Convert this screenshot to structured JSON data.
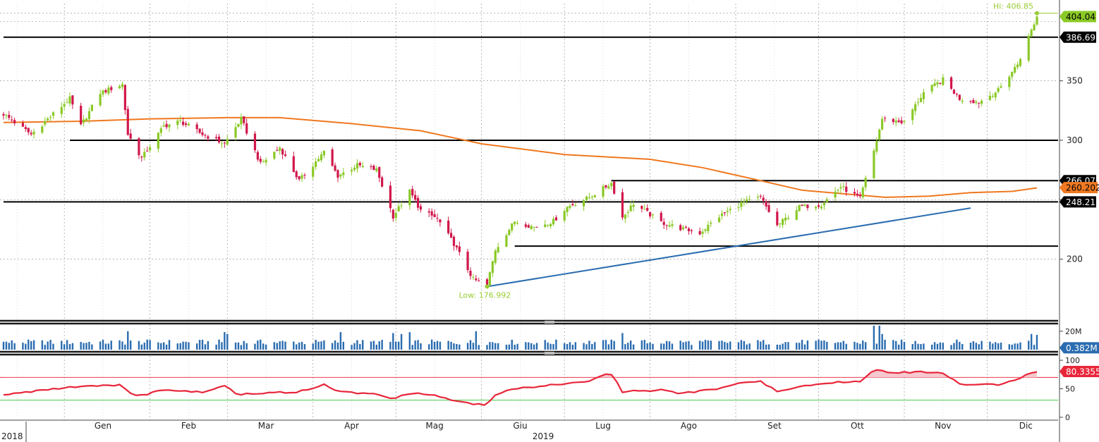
{
  "colors": {
    "up": "#8ac926",
    "down": "#d1174b",
    "ma": "#f07820",
    "trend": "#2a6cb0",
    "volume": "#2a6cb0",
    "rsi": "#e8263a",
    "rsi_fill": "#f5c9cf",
    "rsi_upper": "#e8263a",
    "rsi_lower": "#46c846",
    "hilo": "#99cc33"
  },
  "chart_data": {
    "type": "candlestick",
    "price_axis": {
      "ylim": [
        150,
        415
      ],
      "ticks": [
        "200",
        "250",
        "300",
        "350"
      ]
    },
    "x_labels": [
      {
        "label": "Gen",
        "date": "2019-01"
      },
      {
        "label": "Feb",
        "date": "2019-02"
      },
      {
        "label": "Mar",
        "date": "2019-03"
      },
      {
        "label": "Apr",
        "date": "2019-04"
      },
      {
        "label": "Mag",
        "date": "2019-05"
      },
      {
        "label": "Giu",
        "date": "2019-06"
      },
      {
        "label": "Lug",
        "date": "2019-07"
      },
      {
        "label": "Ago",
        "date": "2019-08"
      },
      {
        "label": "Set",
        "date": "2019-09"
      },
      {
        "label": "Ott",
        "date": "2019-10"
      },
      {
        "label": "Nov",
        "date": "2019-11"
      },
      {
        "label": "Dic",
        "date": "2019-12"
      }
    ],
    "year_labels": [
      "2018",
      "2019"
    ],
    "close_path": [
      [
        "2018-12-10",
        322
      ],
      [
        "2018-12-20",
        305
      ],
      [
        "2019-01-03",
        335
      ],
      [
        "2019-01-07",
        312
      ],
      [
        "2019-01-14",
        340
      ],
      [
        "2019-01-22",
        347
      ],
      [
        "2019-01-24",
        305
      ],
      [
        "2019-01-29",
        285
      ],
      [
        "2019-02-06",
        312
      ],
      [
        "2019-02-12",
        316
      ],
      [
        "2019-02-20",
        305
      ],
      [
        "2019-02-28",
        297
      ],
      [
        "2019-03-06",
        318
      ],
      [
        "2019-03-13",
        280
      ],
      [
        "2019-03-20",
        294
      ],
      [
        "2019-03-27",
        266
      ],
      [
        "2019-04-05",
        290
      ],
      [
        "2019-04-10",
        270
      ],
      [
        "2019-04-17",
        279
      ],
      [
        "2019-04-24",
        275
      ],
      [
        "2019-04-30",
        236
      ],
      [
        "2019-05-06",
        257
      ],
      [
        "2019-05-10",
        241
      ],
      [
        "2019-05-16",
        234
      ],
      [
        "2019-05-22",
        213
      ],
      [
        "2019-05-29",
        183
      ],
      [
        "2019-06-03",
        178
      ],
      [
        "2019-06-06",
        208
      ],
      [
        "2019-06-13",
        232
      ],
      [
        "2019-06-20",
        227
      ],
      [
        "2019-06-27",
        232
      ],
      [
        "2019-07-02",
        244
      ],
      [
        "2019-07-10",
        252
      ],
      [
        "2019-07-18",
        264
      ],
      [
        "2019-07-22",
        235
      ],
      [
        "2019-07-26",
        247
      ],
      [
        "2019-08-05",
        231
      ],
      [
        "2019-08-12",
        226
      ],
      [
        "2019-08-19",
        222
      ],
      [
        "2019-08-26",
        236
      ],
      [
        "2019-09-03",
        247
      ],
      [
        "2019-09-10",
        252
      ],
      [
        "2019-09-16",
        228
      ],
      [
        "2019-09-24",
        244
      ],
      [
        "2019-10-02",
        246
      ],
      [
        "2019-10-09",
        261
      ],
      [
        "2019-10-16",
        251
      ],
      [
        "2019-10-21",
        291
      ],
      [
        "2019-10-24",
        318
      ],
      [
        "2019-11-01",
        315
      ],
      [
        "2019-11-08",
        340
      ],
      [
        "2019-11-15",
        351
      ],
      [
        "2019-11-21",
        335
      ],
      [
        "2019-11-28",
        332
      ],
      [
        "2019-12-05",
        342
      ],
      [
        "2019-12-12",
        364
      ],
      [
        "2019-12-19",
        404
      ]
    ],
    "moving_average_path": [
      [
        "2018-12-10",
        315
      ],
      [
        "2019-01-07",
        316
      ],
      [
        "2019-02-01",
        318
      ],
      [
        "2019-03-01",
        319
      ],
      [
        "2019-03-20",
        319
      ],
      [
        "2019-04-15",
        314
      ],
      [
        "2019-05-10",
        308
      ],
      [
        "2019-06-01",
        297
      ],
      [
        "2019-07-01",
        288
      ],
      [
        "2019-08-01",
        284
      ],
      [
        "2019-08-20",
        277
      ],
      [
        "2019-09-10",
        266
      ],
      [
        "2019-09-25",
        258
      ],
      [
        "2019-10-10",
        255
      ],
      [
        "2019-10-25",
        252
      ],
      [
        "2019-11-10",
        253
      ],
      [
        "2019-11-25",
        256
      ],
      [
        "2019-12-10",
        257
      ],
      [
        "2019-12-19",
        260
      ]
    ],
    "horizontal_levels": [
      {
        "value": 386.69,
        "from": "2018-12-10",
        "to": "2019-12-31"
      },
      {
        "value": 300,
        "from": "2019-01-03",
        "to": "2019-12-31"
      },
      {
        "value": 266.07,
        "from": "2019-07-18",
        "to": "2019-12-31"
      },
      {
        "value": 248.21,
        "from": "2018-12-10",
        "to": "2019-12-31"
      },
      {
        "value": 211,
        "from": "2019-06-13",
        "to": "2019-12-31"
      }
    ],
    "trendline": {
      "from": [
        "2019-06-03",
        177
      ],
      "to": [
        "2019-11-25",
        243
      ]
    },
    "hi": {
      "text": "Hi: 406.85",
      "date": "2019-12-19",
      "value": 406.85
    },
    "low": {
      "text": "Low: 176.992",
      "date": "2019-06-03",
      "value": 176.992
    },
    "price_badges": [
      {
        "text": "404.04",
        "value": 404.04,
        "style": "green"
      },
      {
        "text": "386.69",
        "value": 386.69,
        "style": "dark"
      },
      {
        "text": "266.07",
        "value": 266.07,
        "style": "dark"
      },
      {
        "text": "260.202",
        "value": 260.202,
        "style": "orange"
      },
      {
        "text": "248.21",
        "value": 248.21,
        "style": "dark"
      }
    ],
    "volume": {
      "ticks": [
        "20M"
      ],
      "ylim": [
        0,
        26
      ],
      "last": "0.382M",
      "spikes": [
        [
          "2019-01-24",
          20
        ],
        [
          "2019-02-28",
          19
        ],
        [
          "2019-03-01",
          17
        ],
        [
          "2019-04-11",
          19
        ],
        [
          "2019-04-30",
          18
        ],
        [
          "2019-05-03",
          17
        ],
        [
          "2019-05-06",
          19
        ],
        [
          "2019-05-30",
          20
        ],
        [
          "2019-07-22",
          18
        ],
        [
          "2019-10-21",
          26
        ],
        [
          "2019-10-23",
          26
        ],
        [
          "2019-10-24",
          17
        ],
        [
          "2019-12-17",
          17
        ],
        [
          "2019-12-19",
          16
        ]
      ]
    },
    "rsi": {
      "ticks": [
        "0",
        "50",
        "100"
      ],
      "ylim": [
        -5,
        105
      ],
      "upper": 70,
      "lower": 30,
      "last": "80.3355",
      "path": [
        [
          "2018-12-10",
          40
        ],
        [
          "2018-12-20",
          45
        ],
        [
          "2019-01-07",
          55
        ],
        [
          "2019-01-22",
          57
        ],
        [
          "2019-01-24",
          42
        ],
        [
          "2019-01-29",
          38
        ],
        [
          "2019-02-06",
          48
        ],
        [
          "2019-02-20",
          44
        ],
        [
          "2019-02-28",
          55
        ],
        [
          "2019-03-05",
          40
        ],
        [
          "2019-03-13",
          42
        ],
        [
          "2019-03-27",
          45
        ],
        [
          "2019-04-05",
          57
        ],
        [
          "2019-04-10",
          45
        ],
        [
          "2019-04-24",
          40
        ],
        [
          "2019-04-30",
          33
        ],
        [
          "2019-05-06",
          43
        ],
        [
          "2019-05-16",
          38
        ],
        [
          "2019-05-22",
          30
        ],
        [
          "2019-05-29",
          23
        ],
        [
          "2019-06-03",
          22
        ],
        [
          "2019-06-06",
          40
        ],
        [
          "2019-06-13",
          50
        ],
        [
          "2019-06-27",
          57
        ],
        [
          "2019-07-10",
          63
        ],
        [
          "2019-07-15",
          74
        ],
        [
          "2019-07-18",
          76
        ],
        [
          "2019-07-22",
          45
        ],
        [
          "2019-08-05",
          48
        ],
        [
          "2019-08-12",
          42
        ],
        [
          "2019-08-26",
          50
        ],
        [
          "2019-09-03",
          61
        ],
        [
          "2019-09-10",
          63
        ],
        [
          "2019-09-16",
          45
        ],
        [
          "2019-09-24",
          55
        ],
        [
          "2019-10-09",
          62
        ],
        [
          "2019-10-16",
          62
        ],
        [
          "2019-10-21",
          83
        ],
        [
          "2019-10-28",
          78
        ],
        [
          "2019-11-08",
          80
        ],
        [
          "2019-11-15",
          78
        ],
        [
          "2019-11-21",
          58
        ],
        [
          "2019-12-05",
          57
        ],
        [
          "2019-12-12",
          68
        ],
        [
          "2019-12-19",
          80.3355
        ]
      ]
    }
  }
}
